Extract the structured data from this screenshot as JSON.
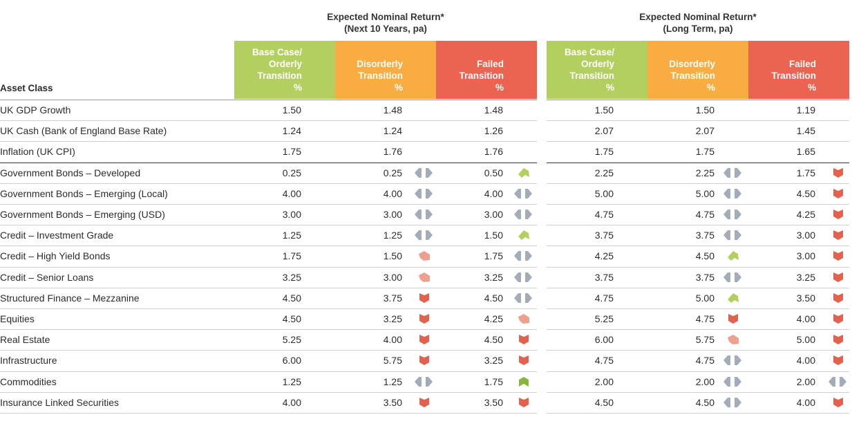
{
  "groups": [
    {
      "title_line1": "Expected Nominal Return*",
      "title_line2": "(Next 10 Years, pa)"
    },
    {
      "title_line1": "Expected Nominal Return*",
      "title_line2": "(Long Term, pa)"
    }
  ],
  "headers": {
    "asset_class": "Asset Class",
    "scenarios": [
      {
        "lines": [
          "Base Case/",
          "Orderly",
          "Transition",
          "%"
        ],
        "color": "#b3cf5f"
      },
      {
        "lines": [
          "Disorderly",
          "Transition",
          "%"
        ],
        "color": "#f9ac42"
      },
      {
        "lines": [
          "Failed",
          "Transition",
          "%"
        ],
        "color": "#ea6451"
      }
    ]
  },
  "colors": {
    "green": "#b3cf5f",
    "orange": "#f9ac42",
    "red": "#ea6451",
    "neutral_icon": "#a3adb8",
    "down_icon": "#e2614f",
    "slight_down_icon": "#eea08f",
    "up_icon": "#b3cf5f",
    "strong_up_icon": "#8ab53a"
  },
  "legend_icons": {
    "neutral": "left-right-arrows-icon",
    "down": "down-arrow-icon",
    "slight_down": "down-right-arrow-icon",
    "up": "up-right-arrow-icon",
    "strong_up": "up-arrow-icon"
  },
  "rows": [
    {
      "label": "UK GDP Growth",
      "v": [
        "1.50",
        "1.48",
        "1.48",
        "1.50",
        "1.50",
        "1.19"
      ],
      "i": [
        "",
        "",
        "",
        "",
        ""
      ]
    },
    {
      "label": "UK Cash (Bank of England Base Rate)",
      "v": [
        "1.24",
        "1.24",
        "1.26",
        "2.07",
        "2.07",
        "1.45"
      ],
      "i": [
        "",
        "",
        "",
        "",
        ""
      ]
    },
    {
      "label": "Inflation (UK CPI)",
      "v": [
        "1.75",
        "1.76",
        "1.76",
        "1.75",
        "1.75",
        "1.65"
      ],
      "i": [
        "",
        "",
        "",
        "",
        ""
      ]
    },
    {
      "label": "Government Bonds – Developed",
      "v": [
        "0.25",
        "0.25",
        "0.50",
        "2.25",
        "2.25",
        "1.75"
      ],
      "i": [
        "neutral",
        "up",
        "neutral",
        "down"
      ]
    },
    {
      "label": "Government Bonds – Emerging (Local)",
      "v": [
        "4.00",
        "4.00",
        "4.00",
        "5.00",
        "5.00",
        "4.50"
      ],
      "i": [
        "neutral",
        "neutral",
        "neutral",
        "down"
      ]
    },
    {
      "label": "Government Bonds – Emerging (USD)",
      "v": [
        "3.00",
        "3.00",
        "3.00",
        "4.75",
        "4.75",
        "4.25"
      ],
      "i": [
        "neutral",
        "neutral",
        "neutral",
        "down"
      ]
    },
    {
      "label": "Credit – Investment Grade",
      "v": [
        "1.25",
        "1.25",
        "1.50",
        "3.75",
        "3.75",
        "3.00"
      ],
      "i": [
        "neutral",
        "up",
        "neutral",
        "down"
      ]
    },
    {
      "label": "Credit – High Yield Bonds",
      "v": [
        "1.75",
        "1.50",
        "1.75",
        "4.25",
        "4.50",
        "3.00"
      ],
      "i": [
        "slight_down",
        "neutral",
        "up",
        "down"
      ]
    },
    {
      "label": "Credit – Senior Loans",
      "v": [
        "3.25",
        "3.00",
        "3.25",
        "3.75",
        "3.75",
        "3.25"
      ],
      "i": [
        "slight_down",
        "neutral",
        "neutral",
        "down"
      ]
    },
    {
      "label": "Structured Finance – Mezzanine",
      "v": [
        "4.50",
        "3.75",
        "4.50",
        "4.75",
        "5.00",
        "3.50"
      ],
      "i": [
        "down",
        "neutral",
        "up",
        "down"
      ]
    },
    {
      "label": "Equities",
      "v": [
        "4.50",
        "3.25",
        "4.25",
        "5.25",
        "4.75",
        "4.00"
      ],
      "i": [
        "down",
        "slight_down",
        "down",
        "down"
      ]
    },
    {
      "label": "Real Estate",
      "v": [
        "5.25",
        "4.00",
        "4.50",
        "6.00",
        "5.75",
        "5.00"
      ],
      "i": [
        "down",
        "down",
        "slight_down",
        "down"
      ]
    },
    {
      "label": "Infrastructure",
      "v": [
        "6.00",
        "5.75",
        "3.25",
        "4.75",
        "4.75",
        "4.00"
      ],
      "i": [
        "down",
        "down",
        "neutral",
        "down"
      ]
    },
    {
      "label": "Commodities",
      "v": [
        "1.25",
        "1.25",
        "1.75",
        "2.00",
        "2.00",
        "2.00"
      ],
      "i": [
        "neutral",
        "strong_up",
        "neutral",
        "neutral"
      ]
    },
    {
      "label": "Insurance Linked Securities",
      "v": [
        "4.00",
        "3.50",
        "3.50",
        "4.50",
        "4.50",
        "4.00"
      ],
      "i": [
        "down",
        "down",
        "neutral",
        "down"
      ]
    }
  ]
}
